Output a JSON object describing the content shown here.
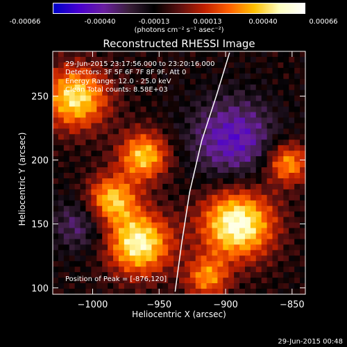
{
  "colorbar": {
    "ticks": [
      "-0.00066",
      "-0.00040",
      "-0.00013",
      "0.00013",
      "0.00040",
      "0.00066"
    ],
    "units": "(photons cm⁻² s⁻¹ asec⁻²)",
    "min": -0.00066,
    "max": 0.00066
  },
  "chart_data": {
    "type": "heatmap",
    "title": "Reconstructed RHESSI Image",
    "xlabel": "Heliocentric X (arcsec)",
    "ylabel": "Heliocentric Y (arcsec)",
    "xlim": [
      -1030,
      -840
    ],
    "ylim": [
      95,
      285
    ],
    "xticks": [
      -1000,
      -950,
      -900,
      -850
    ],
    "xtick_labels": [
      "−1000",
      "−950",
      "−900",
      "−850"
    ],
    "yticks": [
      100,
      150,
      200,
      250
    ],
    "yticks_labels": [
      "100",
      "150",
      "200",
      "250"
    ],
    "limb_line": [
      [
        -938,
        97
      ],
      [
        -933,
        135
      ],
      [
        -927,
        175
      ],
      [
        -918,
        215
      ],
      [
        -907,
        250
      ],
      [
        -897,
        284
      ]
    ],
    "colormap": [
      "#0000c8",
      "#4a00d0",
      "#6a1fa0",
      "#3a1f3a",
      "#000000",
      "#5a1010",
      "#c02000",
      "#ff6000",
      "#ffc000",
      "#ffffc0",
      "#ffffff"
    ]
  },
  "annotations": {
    "time_range": "29-Jun-2015 23:17:56.000 to 23:20:16.000",
    "detectors": "Detectors: 3F 5F 6F 7F 8F 9F, Att 0",
    "energy_range": "Energy Range: 12.0 - 25.0 keV",
    "method": "Clean    Total counts: 8.58E+03",
    "peak": "Position of Peak = [-876,120]"
  },
  "footer": {
    "date": "29-Jun-2015 00:48"
  }
}
